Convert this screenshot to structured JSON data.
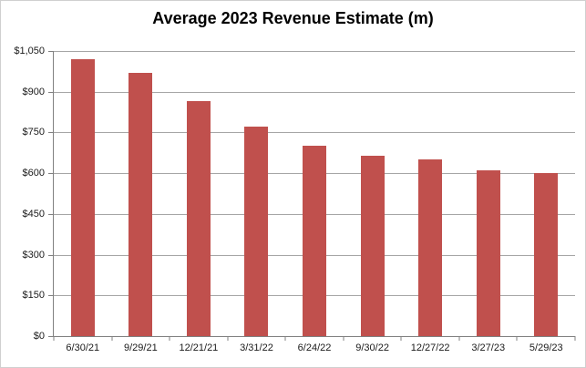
{
  "chart_data": {
    "type": "bar",
    "title": "Average 2023 Revenue Estimate (m)",
    "categories": [
      "6/30/21",
      "9/29/21",
      "12/21/21",
      "3/31/22",
      "6/24/22",
      "9/30/22",
      "12/27/22",
      "3/27/23",
      "5/29/23"
    ],
    "values": [
      1020,
      970,
      865,
      770,
      700,
      665,
      650,
      610,
      600
    ],
    "xlabel": "",
    "ylabel": "",
    "ylim": [
      0,
      1050
    ],
    "ytick_step": 150,
    "ytick_labels": [
      "$0",
      "$150",
      "$300",
      "$450",
      "$600",
      "$750",
      "$900",
      "$1,050"
    ],
    "grid": true,
    "legend": false,
    "currency_prefix": "$",
    "colors": {
      "bar_fill": "#c0504d",
      "gridline": "#a6a6a6",
      "axis_line": "#808080",
      "tick": "#808080",
      "label_text": "#1a1a1a",
      "title_text": "#000000",
      "background": "#ffffff",
      "frame_border": "#d0d0d0"
    }
  }
}
